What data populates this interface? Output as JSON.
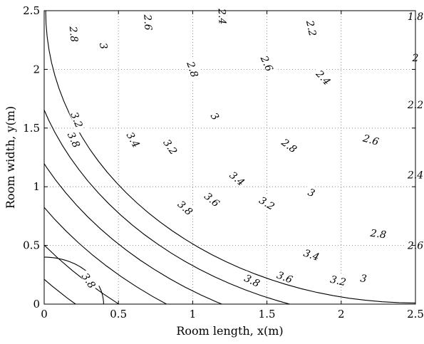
{
  "chart_data": {
    "type": "contour",
    "title": "",
    "xlabel": "Room length, x(m)",
    "ylabel": "Room width, y(m)",
    "xlim": [
      0,
      2.5
    ],
    "ylim": [
      0,
      2.5
    ],
    "grid": true,
    "x_ticks": [
      "0",
      "0.5",
      "1",
      "1.5",
      "2",
      "2.5"
    ],
    "y_ticks": [
      "0",
      "0.5",
      "1",
      "1.5",
      "2",
      "2.5"
    ],
    "contours": [
      {
        "level": "3.8",
        "center": [
          0,
          0
        ],
        "radius": 0.4,
        "labels": [
          [
            0.3,
            0.2
          ]
        ]
      },
      {
        "level": "3.8",
        "center": [
          2.5,
          2.5
        ],
        "radius": 2.49,
        "labels": [
          [
            0.2,
            1.4
          ],
          [
            0.95,
            0.82
          ],
          [
            1.4,
            0.2
          ]
        ]
      },
      {
        "level": "3.6",
        "center": [
          2.5,
          2.5
        ],
        "radius": 2.64,
        "labels": [
          [
            0.23,
            1.55
          ],
          [
            1.13,
            0.89
          ],
          [
            1.62,
            0.23
          ]
        ]
      },
      {
        "level": "3.4",
        "center": [
          2.5,
          2.5
        ],
        "radius": 2.82,
        "labels": [
          [
            0.6,
            1.4
          ],
          [
            1.3,
            1.07
          ],
          [
            1.8,
            0.42
          ]
        ]
      },
      {
        "level": "3.2",
        "center": [
          2.5,
          2.5
        ],
        "radius": 3.01,
        "labels": [
          [
            0.22,
            1.57
          ],
          [
            0.85,
            1.34
          ],
          [
            1.5,
            0.86
          ],
          [
            1.98,
            0.2
          ]
        ]
      },
      {
        "level": "3",
        "center": [
          2.5,
          2.5
        ],
        "radius": 3.2,
        "labels": [
          [
            0.4,
            2.2
          ],
          [
            1.15,
            1.6
          ],
          [
            1.8,
            0.95
          ],
          [
            2.15,
            0.22
          ]
        ]
      },
      {
        "level": "2.8",
        "center": [
          2.5,
          2.5
        ],
        "radius": 3.39,
        "labels": [
          [
            0.2,
            2.3
          ],
          [
            1.0,
            2.0
          ],
          [
            1.65,
            1.35
          ],
          [
            2.25,
            0.6
          ]
        ]
      },
      {
        "level": "2.6",
        "center": [
          2.5,
          2.5
        ],
        "radius": 3.58,
        "labels": [
          [
            0.7,
            2.4
          ],
          [
            1.5,
            2.05
          ],
          [
            2.2,
            1.4
          ],
          [
            2.5,
            0.5
          ]
        ]
      },
      {
        "level": "2.4",
        "center": [
          2.5,
          2.5
        ],
        "radius": 3.77,
        "labels": [
          [
            1.2,
            2.45
          ],
          [
            1.88,
            1.93
          ],
          [
            2.5,
            1.1
          ]
        ]
      },
      {
        "level": "2.2",
        "center": [
          2.5,
          2.5
        ],
        "radius": 3.96,
        "labels": [
          [
            1.8,
            2.35
          ],
          [
            2.5,
            1.7
          ]
        ]
      },
      {
        "level": "2",
        "center": [
          2.5,
          2.5
        ],
        "radius": 4.15,
        "labels": [
          [
            2.5,
            2.1
          ]
        ]
      },
      {
        "level": "1.8",
        "center": [
          2.5,
          2.5
        ],
        "radius": 4.34,
        "labels": [
          [
            2.5,
            2.45
          ]
        ]
      }
    ]
  }
}
